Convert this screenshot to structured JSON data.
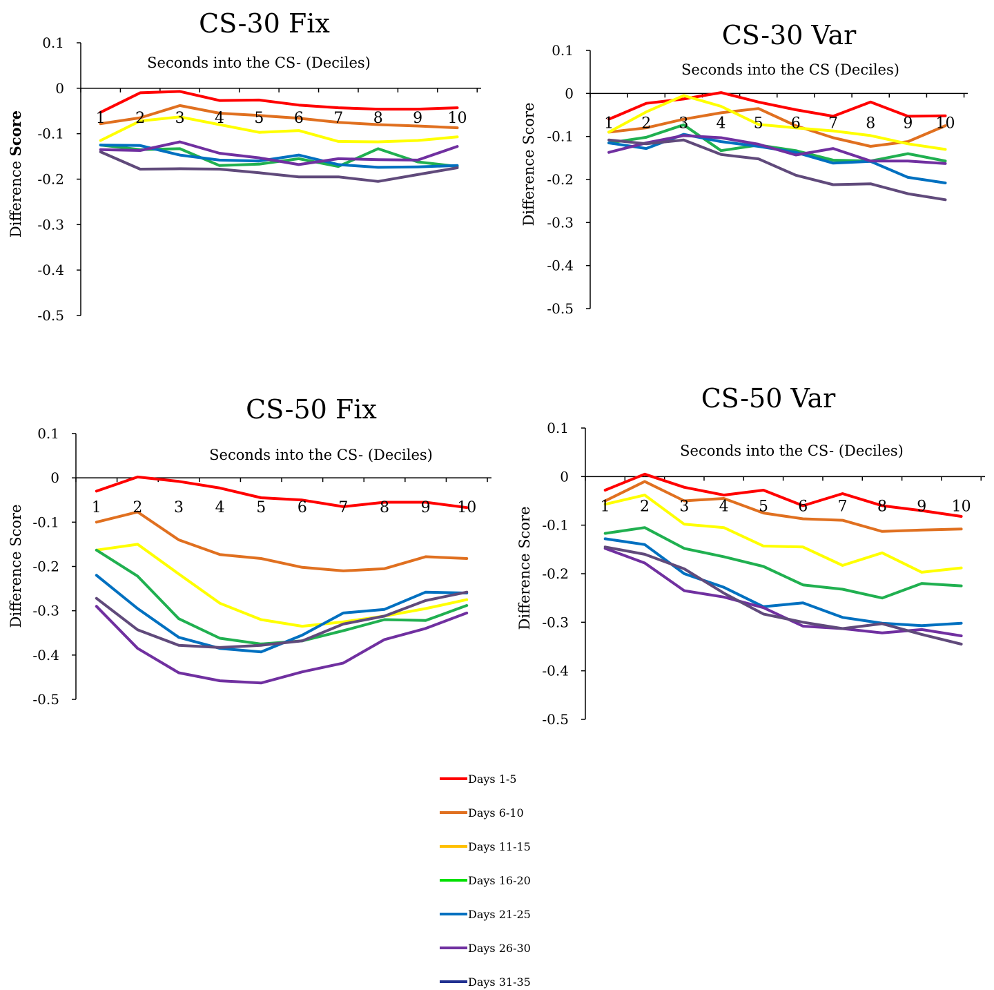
{
  "legend": {
    "entries": [
      {
        "name": "Days 1-5",
        "color": "#ff0000"
      },
      {
        "name": "Days 6-10",
        "color": "#e07020"
      },
      {
        "name": "Days 11-15",
        "color": "#ffc000"
      },
      {
        "name": "Days 16-20",
        "color": "#00e000"
      },
      {
        "name": "Days 21-25",
        "color": "#0070c0"
      },
      {
        "name": "Days 26-30",
        "color": "#7030a0"
      },
      {
        "name": "Days 31-35",
        "color": "#203090"
      }
    ]
  },
  "chart_data": [
    {
      "type": "line",
      "title": "CS-30 Fix",
      "xlabel": "Seconds into the CS- (Deciles)",
      "ylabel_plain": "Difference ",
      "ylabel_bold": "Score",
      "ylim": [
        -0.5,
        0.1
      ],
      "yticks": [
        "0.1",
        "0",
        "-0.1",
        "-0.2",
        "-0.3",
        "-0.4",
        "-0.5"
      ],
      "categories": [
        "1",
        "2",
        "3",
        "4",
        "5",
        "6",
        "7",
        "8",
        "9",
        "10"
      ],
      "grid": false,
      "series": [
        {
          "legend": 0,
          "color": "#ff0000",
          "values": [
            -0.053,
            -0.01,
            -0.007,
            -0.027,
            -0.026,
            -0.037,
            -0.043,
            -0.046,
            -0.046,
            -0.043
          ]
        },
        {
          "legend": 1,
          "color": "#e07020",
          "values": [
            -0.078,
            -0.065,
            -0.038,
            -0.055,
            -0.06,
            -0.066,
            -0.075,
            -0.08,
            -0.083,
            -0.087
          ]
        },
        {
          "legend": 2,
          "color": "#ffff00",
          "values": [
            -0.115,
            -0.072,
            -0.063,
            -0.08,
            -0.097,
            -0.093,
            -0.117,
            -0.118,
            -0.115,
            -0.107
          ]
        },
        {
          "legend": 3,
          "color": "#20b050",
          "values": [
            -0.125,
            -0.135,
            -0.133,
            -0.17,
            -0.167,
            -0.155,
            -0.172,
            -0.133,
            -0.162,
            -0.172
          ]
        },
        {
          "legend": 4,
          "color": "#0070c0",
          "values": [
            -0.125,
            -0.126,
            -0.147,
            -0.158,
            -0.16,
            -0.147,
            -0.168,
            -0.174,
            -0.173,
            -0.17
          ]
        },
        {
          "legend": 5,
          "color": "#7030a0",
          "values": [
            -0.135,
            -0.137,
            -0.118,
            -0.143,
            -0.153,
            -0.168,
            -0.155,
            -0.157,
            -0.158,
            -0.128
          ]
        },
        {
          "legend": 6,
          "color": "#604a7b",
          "values": [
            -0.14,
            -0.178,
            -0.177,
            -0.178,
            -0.186,
            -0.195,
            -0.195,
            -0.205,
            -0.19,
            -0.175
          ]
        }
      ]
    },
    {
      "type": "line",
      "title": "CS-30 Var",
      "xlabel": "Seconds into the CS (Deciles)",
      "ylabel_plain": "Difference Score",
      "ylabel_bold": "",
      "ylim": [
        -0.5,
        0.1
      ],
      "yticks": [
        "0.1",
        "0",
        "-0.1",
        "-0.2",
        "-0.3",
        "-0.4",
        "-0.5"
      ],
      "categories": [
        "1",
        "2",
        "3",
        "4",
        "5",
        "6",
        "7",
        "8",
        "9",
        "10"
      ],
      "grid": false,
      "series": [
        {
          "legend": 0,
          "color": "#ff0000",
          "values": [
            -0.06,
            -0.023,
            -0.013,
            0.002,
            -0.02,
            -0.038,
            -0.053,
            -0.02,
            -0.053,
            -0.052
          ]
        },
        {
          "legend": 1,
          "color": "#e07020",
          "values": [
            -0.09,
            -0.08,
            -0.06,
            -0.045,
            -0.035,
            -0.075,
            -0.103,
            -0.123,
            -0.112,
            -0.075
          ]
        },
        {
          "legend": 2,
          "color": "#ffff00",
          "values": [
            -0.09,
            -0.043,
            -0.005,
            -0.03,
            -0.072,
            -0.08,
            -0.087,
            -0.098,
            -0.117,
            -0.13
          ]
        },
        {
          "legend": 3,
          "color": "#20b050",
          "values": [
            -0.115,
            -0.102,
            -0.073,
            -0.133,
            -0.12,
            -0.133,
            -0.155,
            -0.157,
            -0.14,
            -0.157
          ]
        },
        {
          "legend": 4,
          "color": "#0070c0",
          "values": [
            -0.115,
            -0.128,
            -0.095,
            -0.112,
            -0.123,
            -0.137,
            -0.162,
            -0.158,
            -0.195,
            -0.208
          ]
        },
        {
          "legend": 5,
          "color": "#7030a0",
          "values": [
            -0.137,
            -0.115,
            -0.098,
            -0.103,
            -0.118,
            -0.143,
            -0.128,
            -0.157,
            -0.157,
            -0.163
          ]
        },
        {
          "legend": 6,
          "color": "#604a7b",
          "values": [
            -0.108,
            -0.117,
            -0.108,
            -0.142,
            -0.152,
            -0.19,
            -0.212,
            -0.21,
            -0.233,
            -0.247
          ]
        }
      ]
    },
    {
      "type": "line",
      "title": "CS-50 Fix",
      "xlabel": "Seconds into the CS- (Deciles)",
      "ylabel_plain": "Difference Score",
      "ylabel_bold": "",
      "ylim": [
        -0.5,
        0.1
      ],
      "yticks": [
        "0.1",
        "0",
        "-0.1",
        "-0.2",
        "-0.3",
        "-0.4",
        "-0.5"
      ],
      "categories": [
        "1",
        "2",
        "3",
        "4",
        "5",
        "6",
        "7",
        "8",
        "9",
        "10"
      ],
      "grid": false,
      "series": [
        {
          "legend": 0,
          "color": "#ff0000",
          "values": [
            -0.03,
            0.002,
            -0.008,
            -0.023,
            -0.045,
            -0.05,
            -0.065,
            -0.055,
            -0.055,
            -0.067
          ]
        },
        {
          "legend": 1,
          "color": "#e07020",
          "values": [
            -0.1,
            -0.077,
            -0.14,
            -0.173,
            -0.182,
            -0.202,
            -0.21,
            -0.205,
            -0.178,
            -0.182
          ]
        },
        {
          "legend": 2,
          "color": "#ffff00",
          "values": [
            -0.163,
            -0.15,
            -0.217,
            -0.283,
            -0.32,
            -0.335,
            -0.325,
            -0.312,
            -0.295,
            -0.275
          ]
        },
        {
          "legend": 3,
          "color": "#20b050",
          "values": [
            -0.163,
            -0.222,
            -0.318,
            -0.362,
            -0.375,
            -0.368,
            -0.345,
            -0.32,
            -0.322,
            -0.288
          ]
        },
        {
          "legend": 4,
          "color": "#0070c0",
          "values": [
            -0.22,
            -0.295,
            -0.36,
            -0.385,
            -0.393,
            -0.355,
            -0.305,
            -0.297,
            -0.258,
            -0.26
          ]
        },
        {
          "legend": 5,
          "color": "#7030a0",
          "values": [
            -0.29,
            -0.385,
            -0.44,
            -0.458,
            -0.463,
            -0.438,
            -0.418,
            -0.365,
            -0.34,
            -0.305
          ]
        },
        {
          "legend": 6,
          "color": "#604a7b",
          "values": [
            -0.272,
            -0.343,
            -0.378,
            -0.383,
            -0.378,
            -0.368,
            -0.33,
            -0.312,
            -0.277,
            -0.258
          ]
        }
      ]
    },
    {
      "type": "line",
      "title": "CS-50 Var",
      "xlabel": "Seconds into the CS- (Deciles)",
      "ylabel_plain": "Difference Score",
      "ylabel_bold": "",
      "ylim": [
        -0.5,
        0.1
      ],
      "yticks": [
        "0.1",
        "0",
        "-0.1",
        "-0.2",
        "-0.3",
        "-0.4",
        "-0.5"
      ],
      "categories": [
        "1",
        "2",
        "3",
        "4",
        "5",
        "6",
        "7",
        "8",
        "9",
        "10"
      ],
      "grid": false,
      "series": [
        {
          "legend": 0,
          "color": "#ff0000",
          "values": [
            -0.028,
            0.005,
            -0.022,
            -0.038,
            -0.028,
            -0.06,
            -0.035,
            -0.06,
            -0.07,
            -0.082
          ]
        },
        {
          "legend": 1,
          "color": "#e07020",
          "values": [
            -0.05,
            -0.01,
            -0.05,
            -0.045,
            -0.075,
            -0.087,
            -0.09,
            -0.113,
            -0.11,
            -0.108
          ]
        },
        {
          "legend": 2,
          "color": "#ffff00",
          "values": [
            -0.057,
            -0.038,
            -0.098,
            -0.105,
            -0.143,
            -0.145,
            -0.183,
            -0.157,
            -0.197,
            -0.188
          ]
        },
        {
          "legend": 3,
          "color": "#20b050",
          "values": [
            -0.117,
            -0.105,
            -0.148,
            -0.165,
            -0.185,
            -0.223,
            -0.232,
            -0.25,
            -0.22,
            -0.225
          ]
        },
        {
          "legend": 4,
          "color": "#0070c0",
          "values": [
            -0.128,
            -0.14,
            -0.2,
            -0.228,
            -0.268,
            -0.26,
            -0.29,
            -0.302,
            -0.307,
            -0.302
          ]
        },
        {
          "legend": 5,
          "color": "#7030a0",
          "values": [
            -0.148,
            -0.178,
            -0.235,
            -0.248,
            -0.27,
            -0.308,
            -0.313,
            -0.322,
            -0.315,
            -0.328
          ]
        },
        {
          "legend": 6,
          "color": "#604a7b",
          "values": [
            -0.145,
            -0.16,
            -0.19,
            -0.24,
            -0.283,
            -0.3,
            -0.313,
            -0.303,
            -0.325,
            -0.345
          ]
        }
      ]
    }
  ]
}
